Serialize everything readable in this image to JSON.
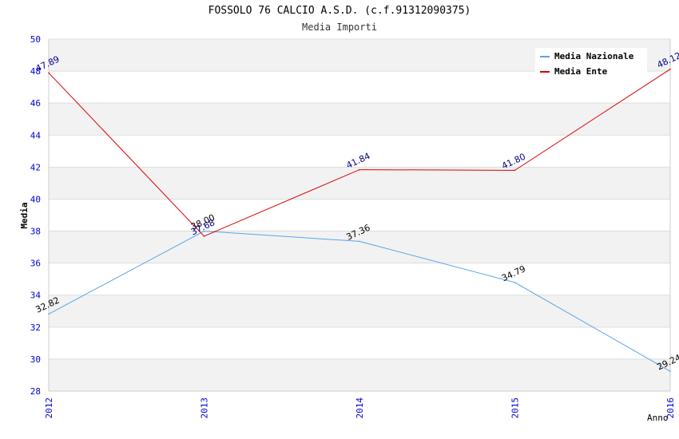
{
  "chart_data": {
    "type": "line",
    "title": "FOSSOLO 76 CALCIO A.S.D. (c.f.91312090375)",
    "subtitle": "Media Importi",
    "xlabel": "Anno",
    "ylabel": "Media",
    "x": [
      "2012",
      "2013",
      "2014",
      "2015",
      "2016"
    ],
    "ylim": [
      28,
      50
    ],
    "yticks": [
      28,
      30,
      32,
      34,
      36,
      38,
      40,
      42,
      44,
      46,
      48,
      50
    ],
    "grid": true,
    "legend_position": "top-right",
    "series": [
      {
        "name": "Media Nazionale",
        "color": "#5aa5e6",
        "label_color": "#000000",
        "values": [
          32.82,
          38.0,
          37.36,
          34.79,
          29.24
        ],
        "labels": [
          "32.82",
          "38.00",
          "37.36",
          "34.79",
          "29.24"
        ]
      },
      {
        "name": "Media Ente",
        "color": "#dd0000",
        "label_color": "#00008b",
        "values": [
          47.89,
          37.68,
          41.84,
          41.8,
          48.12
        ],
        "labels": [
          "47.89",
          "37.68",
          "41.84",
          "41.80",
          "48.12"
        ]
      }
    ]
  },
  "colors": {
    "axis_text": "#0000cc",
    "band": "#f2f2f2",
    "grid": "#dddddd"
  }
}
